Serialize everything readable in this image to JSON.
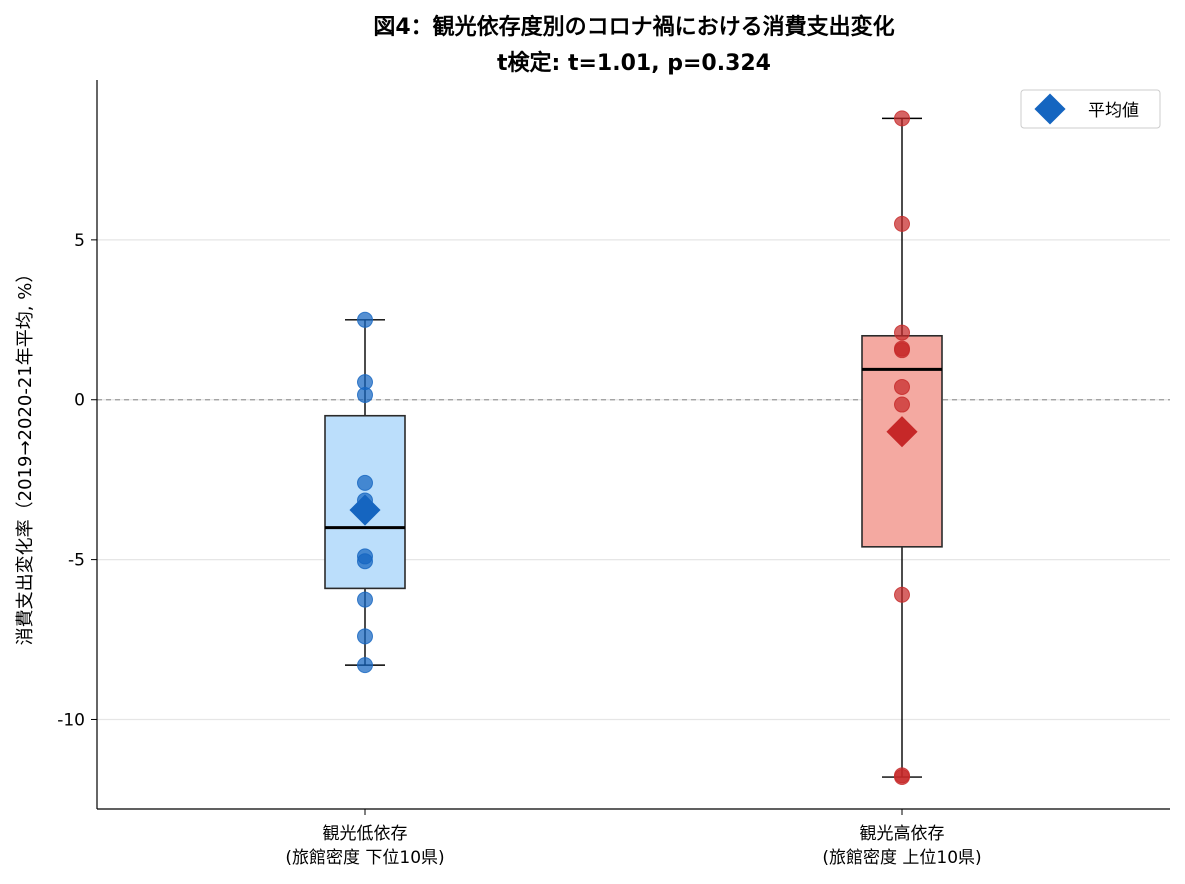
{
  "chart_data": {
    "type": "box",
    "title": "図4：観光依存度別のコロナ禍における消費支出変化",
    "subtitle": "t検定: t=1.01, p=0.324",
    "xlabel": "",
    "ylabel": "消費支出変化率（2019→2020-21年平均, %）",
    "categories": [
      "観光低依存\n(旅館密度 下位10県)",
      "観光高依存\n(旅館密度 上位10県)"
    ],
    "yticks": [
      -10,
      -5,
      0,
      5
    ],
    "ytick_labels": [
      "-10",
      "-5",
      "0",
      "5"
    ],
    "ylim": [
      -12.8,
      10
    ],
    "reference_line": 0,
    "grid": "horizontal",
    "legend": {
      "position": "top-right",
      "label": "平均値"
    },
    "groups": [
      {
        "category": "観光低依存\n(旅館密度 下位10県)",
        "color": "#1565c0",
        "box_fill": "#bbdefb",
        "whisker_low": -8.3,
        "q1": -5.9,
        "median": -4.0,
        "q3": -0.5,
        "whisker_high": 2.5,
        "mean": -3.45,
        "points": [
          2.5,
          0.55,
          0.15,
          -2.6,
          -3.15,
          -4.9,
          -5.05,
          -6.25,
          -7.4,
          -8.3
        ]
      },
      {
        "category": "観光高依存\n(旅館密度 上位10県)",
        "color": "#c62828",
        "box_fill": "#f4a9a1",
        "whisker_low": -11.8,
        "q1": -4.6,
        "median": 0.95,
        "q3": 2.0,
        "whisker_high": 8.8,
        "mean": -1.0,
        "points": [
          8.8,
          5.5,
          2.1,
          1.6,
          1.55,
          0.4,
          -0.15,
          -6.1,
          -11.8,
          -11.75
        ]
      }
    ]
  }
}
